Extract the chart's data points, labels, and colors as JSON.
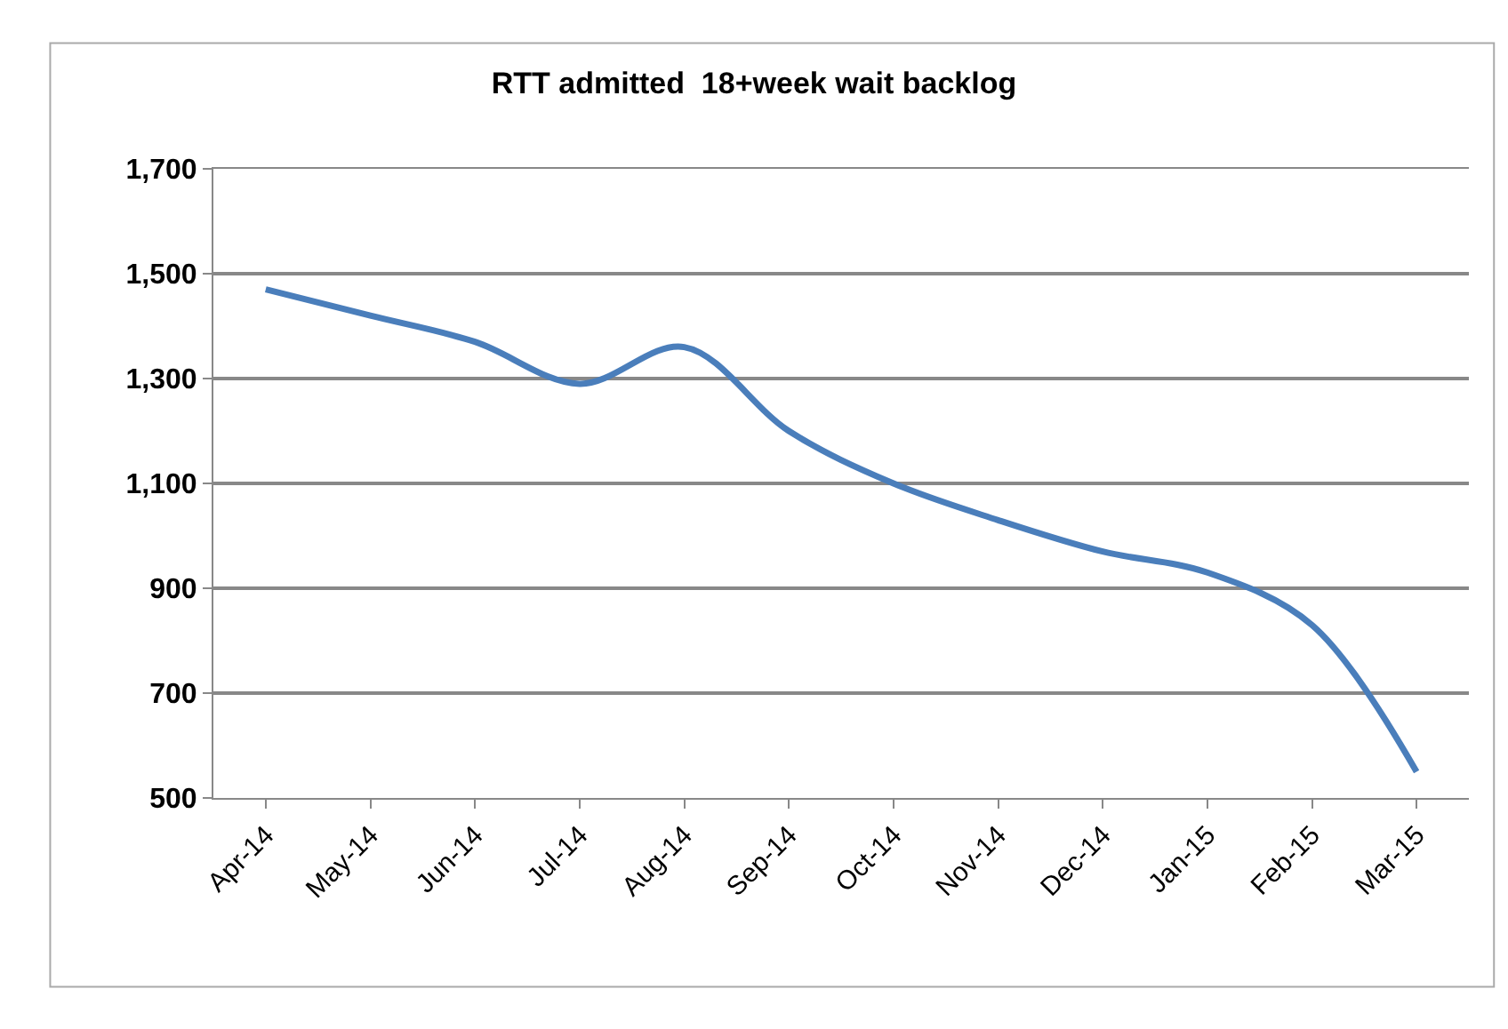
{
  "chart_data": {
    "type": "line",
    "title": "RTT admitted  18+week wait backlog",
    "categories": [
      "Apr-14",
      "May-14",
      "Jun-14",
      "Jul-14",
      "Aug-14",
      "Sep-14",
      "Oct-14",
      "Nov-14",
      "Dec-14",
      "Jan-15",
      "Feb-15",
      "Mar-15"
    ],
    "series": [
      {
        "color": "#4a7ebb",
        "values": [
          1470,
          1420,
          1370,
          1290,
          1360,
          1200,
          1100,
          1030,
          970,
          930,
          830,
          550
        ]
      }
    ],
    "ylim": [
      500,
      1700
    ],
    "yticks": [
      {
        "value": 500,
        "label": "500"
      },
      {
        "value": 700,
        "label": "700"
      },
      {
        "value": 900,
        "label": "900"
      },
      {
        "value": 1100,
        "label": "1,100"
      },
      {
        "value": 1300,
        "label": "1,300"
      },
      {
        "value": 1500,
        "label": "1,500"
      },
      {
        "value": 1700,
        "label": "1,700"
      }
    ],
    "grid": "y",
    "marker": "none",
    "line_style": "solid"
  }
}
